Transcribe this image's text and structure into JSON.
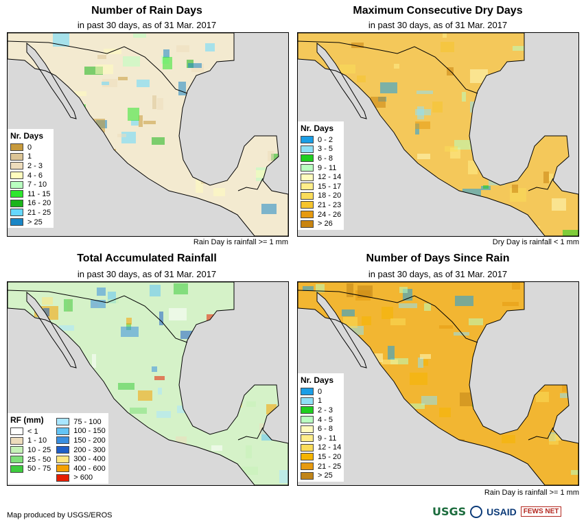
{
  "panels": [
    {
      "title": "Number of Rain Days",
      "subtitle": "in past 30 days, as of 31 Mar. 2017",
      "note": "Rain Day is rainfall >= 1 mm",
      "legend_title": "Nr. Days",
      "land_color": "#f3ead0",
      "legend": [
        {
          "label": "0",
          "color": "#c79a3c"
        },
        {
          "label": "1",
          "color": "#dcc596"
        },
        {
          "label": "2 - 3",
          "color": "#eddcbc"
        },
        {
          "label": "4 - 6",
          "color": "#fffcbe"
        },
        {
          "label": "7 - 10",
          "color": "#b9ffc0"
        },
        {
          "label": "11 - 15",
          "color": "#2ee62e"
        },
        {
          "label": "16 - 20",
          "color": "#1ab41a"
        },
        {
          "label": "21 - 25",
          "color": "#66d8ff"
        },
        {
          "label": "> 25",
          "color": "#1a86c6"
        }
      ]
    },
    {
      "title": "Maximum Consecutive Dry Days",
      "subtitle": "in past 30 days, as of 31 Mar. 2017",
      "note": "Dry Day is rainfall < 1 mm",
      "legend_title": "Nr. Days",
      "land_color": "#f4c85a",
      "legend": [
        {
          "label": "0 - 2",
          "color": "#1a9ee6"
        },
        {
          "label": "3 - 5",
          "color": "#8fe0f5"
        },
        {
          "label": "6 - 8",
          "color": "#1fcf1f"
        },
        {
          "label": "9 - 11",
          "color": "#b9ffc0"
        },
        {
          "label": "12 - 14",
          "color": "#fffcbe"
        },
        {
          "label": "15 - 17",
          "color": "#ffee8a"
        },
        {
          "label": "18 - 20",
          "color": "#fadc5a"
        },
        {
          "label": "21 - 23",
          "color": "#f5c42d"
        },
        {
          "label": "24 - 26",
          "color": "#e69a10"
        },
        {
          "label": "> 26",
          "color": "#c88410"
        }
      ]
    },
    {
      "title": "Total Accumulated Rainfall",
      "subtitle": "in past 30 days, as of 31 Mar. 2017",
      "note": "",
      "legend_title": "RF (mm)",
      "land_color": "#d5f2c8",
      "legend": [
        {
          "label": "< 1",
          "color": "#ffffff"
        },
        {
          "label": "1 - 10",
          "color": "#eddcbc"
        },
        {
          "label": "10 - 25",
          "color": "#c6f2b8"
        },
        {
          "label": "25 - 50",
          "color": "#7fe07a"
        },
        {
          "label": "50 - 75",
          "color": "#3fcc3f"
        }
      ],
      "legend_col2": [
        {
          "label": "75 - 100",
          "color": "#a9e6ff"
        },
        {
          "label": "100 - 150",
          "color": "#63c4f5"
        },
        {
          "label": "150 - 200",
          "color": "#3a8fe0"
        },
        {
          "label": "200 - 300",
          "color": "#1f5fc8"
        },
        {
          "label": "300 - 400",
          "color": "#ffe680"
        },
        {
          "label": "400 - 600",
          "color": "#f5a000"
        },
        {
          "label": "> 600",
          "color": "#e61e00"
        }
      ]
    },
    {
      "title": "Number of Days Since Rain",
      "subtitle": "in past 30 days, as of 31 Mar. 2017",
      "note": "Rain Day is rainfall >= 1 mm",
      "legend_title": "Nr. Days",
      "land_color": "#f2b632",
      "legend": [
        {
          "label": "0",
          "color": "#1a9ee6"
        },
        {
          "label": "1",
          "color": "#8fe0f5"
        },
        {
          "label": "2 - 3",
          "color": "#1fcf1f"
        },
        {
          "label": "4 - 5",
          "color": "#b9ffc0"
        },
        {
          "label": "6 - 8",
          "color": "#fffcbe"
        },
        {
          "label": "9 - 11",
          "color": "#ffee8a"
        },
        {
          "label": "12 - 14",
          "color": "#fadc5a"
        },
        {
          "label": "15 - 20",
          "color": "#f5b400"
        },
        {
          "label": "21 - 25",
          "color": "#e69a10"
        },
        {
          "label": "> 25",
          "color": "#c08418"
        }
      ]
    }
  ],
  "footer": "Map produced by USGS/EROS",
  "logos": {
    "usgs": "USGS",
    "usaid": "USAID",
    "fews": "FEWS NET"
  },
  "colors": {
    "ocean": "#d9d9d9",
    "border": "#000000"
  }
}
